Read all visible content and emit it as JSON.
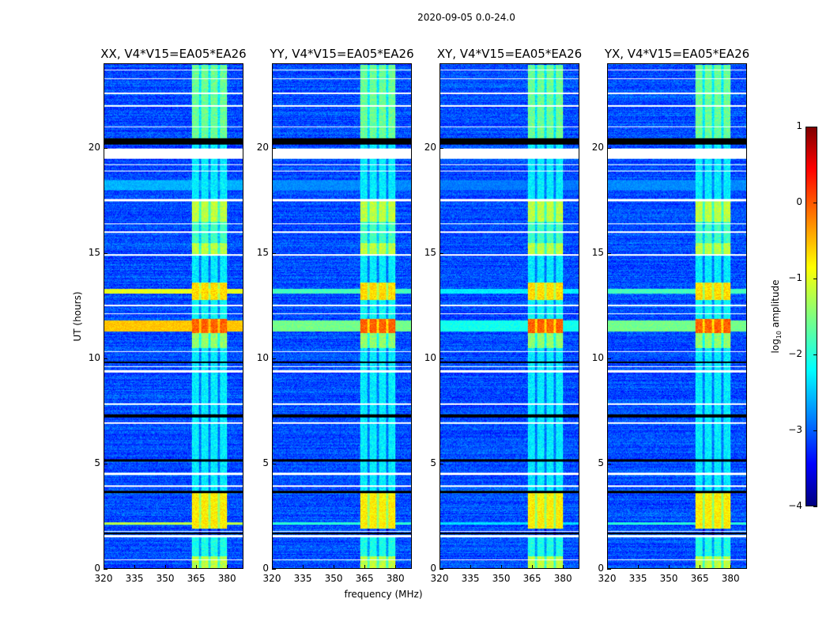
{
  "chart_data": {
    "type": "heatmap",
    "title": "2020-09-05 0.0-24.0",
    "xlabel": "frequency (MHz)",
    "ylabel": "UT (hours)",
    "xlim": [
      320,
      388
    ],
    "ylim": [
      0,
      24
    ],
    "xticks": [
      320,
      335,
      350,
      365,
      380
    ],
    "yticks": [
      0,
      5,
      10,
      15,
      20
    ],
    "colorbar": {
      "label_main": "log",
      "label_sub": "10",
      "label_rest": " amplitude",
      "range": [
        -4,
        1
      ],
      "ticks": [
        1,
        0,
        -1,
        -2,
        -3,
        -4
      ],
      "tick_labels": [
        "1",
        "0",
        "−1",
        "−2",
        "−3",
        "−4"
      ],
      "colormap": "jet"
    },
    "panels": [
      {
        "title": "XX, V4*V15=EA05*EA26",
        "broadband_boost": 1.0
      },
      {
        "title": "YY, V4*V15=EA05*EA26",
        "broadband_boost": 0.6
      },
      {
        "title": "XY, V4*V15=EA05*EA26",
        "broadband_boost": 0.4
      },
      {
        "title": "YX, V4*V15=EA05*EA26",
        "broadband_boost": 0.6
      }
    ],
    "background_level": -3.0,
    "rfi_band_mhz": [
      363,
      380
    ],
    "rfi_subchannel_gaps_mhz": [
      367,
      371.5,
      376
    ],
    "rfi_levels": [
      {
        "hours": [
          0,
          0.6
        ],
        "level": -1.2
      },
      {
        "hours": [
          0.6,
          1.5
        ],
        "level": -2.0
      },
      {
        "hours": [
          1.9,
          3.6
        ],
        "level": -0.8
      },
      {
        "hours": [
          3.6,
          10.5
        ],
        "level": -2.2
      },
      {
        "hours": [
          10.5,
          11.2
        ],
        "level": -1.4
      },
      {
        "hours": [
          11.2,
          11.9
        ],
        "level": -0.1
      },
      {
        "hours": [
          11.9,
          12.8
        ],
        "level": -2.1
      },
      {
        "hours": [
          12.8,
          13.6
        ],
        "level": -0.7
      },
      {
        "hours": [
          13.6,
          14.9
        ],
        "level": -2.2
      },
      {
        "hours": [
          14.9,
          15.5
        ],
        "level": -1.2
      },
      {
        "hours": [
          15.5,
          16.5
        ],
        "level": -1.8
      },
      {
        "hours": [
          16.5,
          17.5
        ],
        "level": -1.2
      },
      {
        "hours": [
          17.5,
          20.5
        ],
        "level": -2.2
      },
      {
        "hours": [
          20.5,
          24
        ],
        "level": -1.6
      }
    ],
    "broadband_levels": [
      {
        "hours": [
          11.3,
          11.8
        ],
        "level": -0.6
      },
      {
        "hours": [
          13.1,
          13.3
        ],
        "level": -1.0
      },
      {
        "hours": [
          2.1,
          2.2
        ],
        "level": -1.2
      },
      {
        "hours": [
          18.0,
          18.5
        ],
        "level": -2.5
      }
    ],
    "flagged_hours": [
      [
        19.5,
        20.0
      ],
      [
        1.5,
        1.6
      ],
      [
        1.75,
        1.8
      ],
      [
        4.45,
        4.55
      ],
      [
        9.35,
        9.45
      ],
      [
        9.6,
        9.65
      ],
      [
        17.5,
        17.6
      ],
      [
        14.9,
        14.95
      ],
      [
        12.5,
        12.55
      ],
      [
        12.1,
        12.15
      ],
      [
        10.3,
        10.35
      ],
      [
        7.8,
        7.85
      ],
      [
        6.9,
        6.95
      ],
      [
        3.9,
        3.95
      ],
      [
        0.4,
        0.45
      ],
      [
        21.0,
        21.05
      ],
      [
        22.0,
        22.05
      ],
      [
        22.6,
        22.65
      ],
      [
        23.3,
        23.35
      ],
      [
        23.7,
        23.75
      ],
      [
        16.4,
        16.45
      ],
      [
        16.0,
        16.05
      ],
      [
        18.9,
        18.95
      ],
      [
        19.2,
        19.25
      ]
    ],
    "masked_hours": [
      [
        20.2,
        20.5
      ],
      [
        1.65,
        1.72
      ],
      [
        7.2,
        7.35
      ],
      [
        5.1,
        5.2
      ],
      [
        3.6,
        3.7
      ],
      [
        9.8,
        9.85
      ]
    ]
  }
}
